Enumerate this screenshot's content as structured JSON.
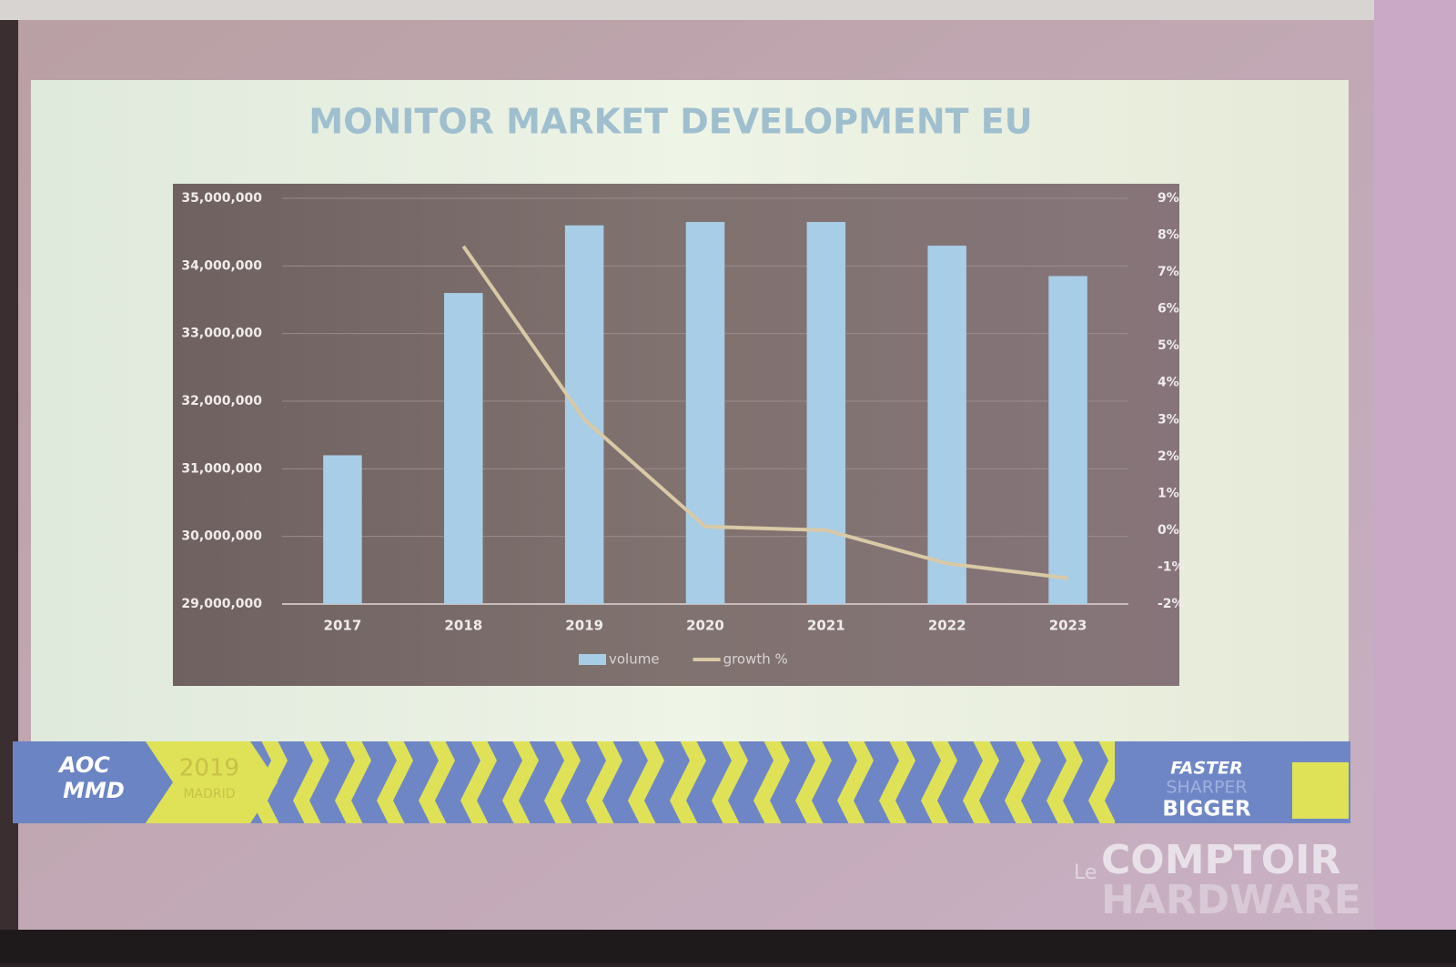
{
  "chart_data": {
    "type": "bar-line",
    "title": "MONITOR MARKET DEVELOPMENT EU",
    "categories": [
      "2017",
      "2018",
      "2019",
      "2020",
      "2021",
      "2022",
      "2023"
    ],
    "series": [
      {
        "name": "volume",
        "type": "bar",
        "color": "#a8cde6",
        "values": [
          31200000,
          33600000,
          34600000,
          34650000,
          34650000,
          34300000,
          33850000
        ]
      },
      {
        "name": "growth %",
        "type": "line",
        "axis": "y2",
        "color": "#d9c9a6",
        "values": [
          null,
          7.7,
          3.0,
          0.1,
          0.0,
          -0.9,
          -1.3
        ]
      }
    ],
    "ylim": [
      29000000,
      35000000
    ],
    "yticks": [
      {
        "value": 29000000,
        "label": "29,000,000"
      },
      {
        "value": 30000000,
        "label": "30,000,000"
      },
      {
        "value": 31000000,
        "label": "31,000,000"
      },
      {
        "value": 32000000,
        "label": "32,000,000"
      },
      {
        "value": 33000000,
        "label": "33,000,000"
      },
      {
        "value": 34000000,
        "label": "34,000,000"
      },
      {
        "value": 35000000,
        "label": "35,000,000"
      }
    ],
    "y2lim": [
      -2,
      9
    ],
    "y2ticks": [
      {
        "value": -2,
        "label": "-2%"
      },
      {
        "value": -1,
        "label": "-1%"
      },
      {
        "value": 0,
        "label": "0%"
      },
      {
        "value": 1,
        "label": "1%"
      },
      {
        "value": 2,
        "label": "2%"
      },
      {
        "value": 3,
        "label": "3%"
      },
      {
        "value": 4,
        "label": "4%"
      },
      {
        "value": 5,
        "label": "5%"
      },
      {
        "value": 6,
        "label": "6%"
      },
      {
        "value": 7,
        "label": "7%"
      },
      {
        "value": 8,
        "label": "8%"
      },
      {
        "value": 9,
        "label": "9%"
      }
    ],
    "grid": true,
    "legend": "bottom"
  },
  "banner": {
    "brand": "AOC",
    "sub_brand": "MMD",
    "year": "2019",
    "city": "MADRID",
    "slogan": [
      "FASTER",
      "SHARPER",
      "BIGGER"
    ]
  },
  "watermark": {
    "prefix": "Le",
    "line1": "COMPTOIR",
    "line2": "HARDWARE"
  }
}
